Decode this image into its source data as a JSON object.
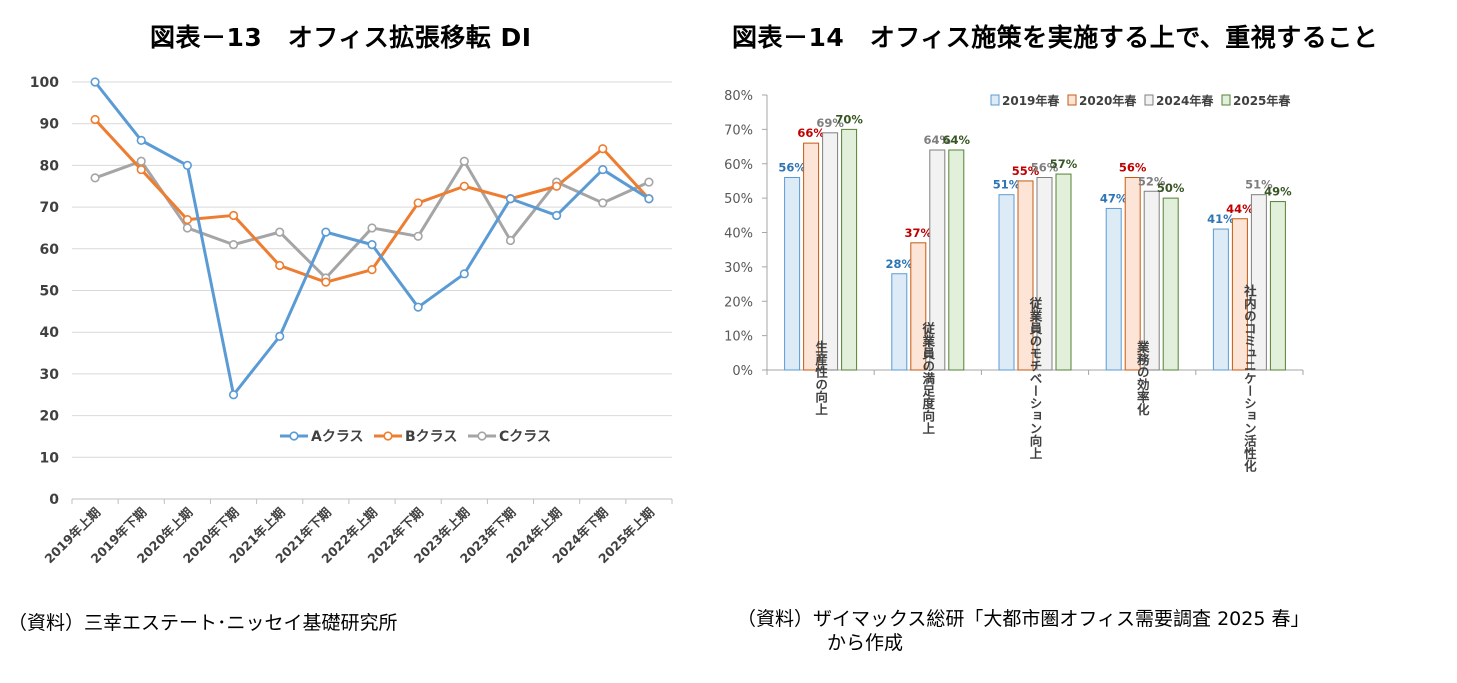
{
  "panels": {
    "left_title": "図表－13　オフィス拡張移転 DI",
    "left_source": "（資料）三幸エステート･ニッセイ基礎研究所",
    "right_title": "図表－14　オフィス施策を実施する上で、重視すること",
    "right_source_line1": "（資料）ザイマックス総研「大都市圏オフィス需要調査 2025 春」",
    "right_source_line2": "から作成"
  },
  "chart_data": [
    {
      "type": "line",
      "title": "図表－13　オフィス拡張移転 DI",
      "xlabel": "",
      "ylabel": "",
      "ylim": [
        0,
        100
      ],
      "yticks": [
        0,
        10,
        20,
        30,
        40,
        50,
        60,
        70,
        80,
        90,
        100
      ],
      "grid": true,
      "legend_position": "bottom-center",
      "x": [
        "2019年上期",
        "2019年下期",
        "2020年上期",
        "2020年下期",
        "2021年上期",
        "2021年下期",
        "2022年上期",
        "2022年下期",
        "2023年上期",
        "2023年下期",
        "2024年上期",
        "2024年下期",
        "2025年上期"
      ],
      "series": [
        {
          "name": "Aクラス",
          "color": "#5B9BD5",
          "values": [
            100,
            86,
            80,
            25,
            39,
            64,
            61,
            46,
            54,
            72,
            68,
            79,
            72
          ]
        },
        {
          "name": "Bクラス",
          "color": "#ED7D31",
          "values": [
            91,
            79,
            67,
            68,
            56,
            52,
            55,
            71,
            75,
            72,
            75,
            84,
            72
          ]
        },
        {
          "name": "Cクラス",
          "color": "#A5A5A5",
          "values": [
            77,
            81,
            65,
            61,
            64,
            53,
            65,
            63,
            81,
            62,
            76,
            71,
            76
          ]
        }
      ]
    },
    {
      "type": "bar",
      "title": "図表－14　オフィス施策を実施する上で、重視すること",
      "xlabel": "",
      "ylabel": "",
      "ylim": [
        0,
        80
      ],
      "yticks": [
        "0%",
        "10%",
        "20%",
        "30%",
        "40%",
        "50%",
        "60%",
        "70%",
        "80%"
      ],
      "grid": false,
      "legend_position": "top-right",
      "categories": [
        "生産性の向上",
        "従業員の満足度向上",
        "従業員のモチベーション向上",
        "業務の効率化",
        "社内のコミュニケーション活性化"
      ],
      "series": [
        {
          "name": "2019年春",
          "fill": "#DDEBF7",
          "stroke": "#5B9BD5",
          "label_color": "#2E75B6",
          "values": [
            56,
            28,
            51,
            47,
            41
          ],
          "labels": [
            "56%",
            "28%",
            "51%",
            "47%",
            "41%"
          ]
        },
        {
          "name": "2020年春",
          "fill": "#FCE4D6",
          "stroke": "#C55A11",
          "label_color": "#C00000",
          "values": [
            66,
            37,
            55,
            56,
            44
          ],
          "labels": [
            "66%",
            "37%",
            "55%",
            "56%",
            "44%"
          ]
        },
        {
          "name": "2024年春",
          "fill": "#F2F2F2",
          "stroke": "#7F7F7F",
          "label_color": "#7F7F7F",
          "values": [
            69,
            64,
            56,
            52,
            51
          ],
          "labels": [
            "69%",
            "64%",
            "56%",
            "52%",
            "51%"
          ]
        },
        {
          "name": "2025年春",
          "fill": "#E2EFDA",
          "stroke": "#548235",
          "label_color": "#375623",
          "values": [
            70,
            64,
            57,
            50,
            49
          ],
          "labels": [
            "70%",
            "64%",
            "57%",
            "50%",
            "49%"
          ]
        }
      ]
    }
  ]
}
